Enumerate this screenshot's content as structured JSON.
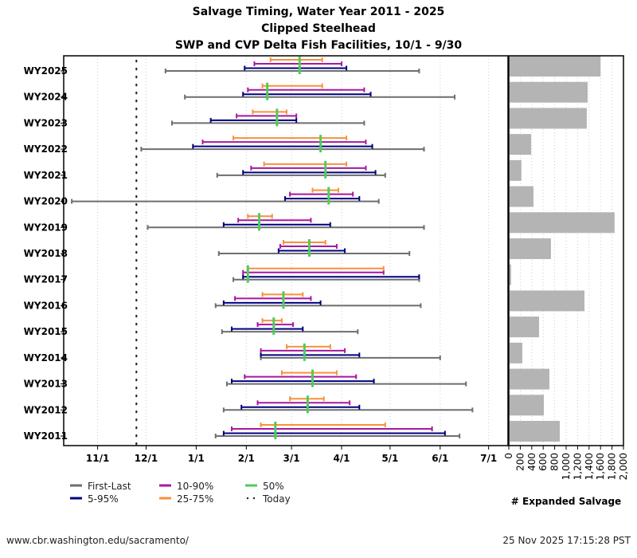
{
  "chart_data": {
    "type": "range-bar",
    "title": [
      "Salvage Timing, Water Year 2011 - 2025",
      "Clipped Steelhead",
      "SWP and CVP Delta Fish Facilities, 10/1 - 9/30"
    ],
    "xaxis": {
      "ticks": [
        "11/1",
        "12/1",
        "1/1",
        "2/1",
        "3/1",
        "4/1",
        "5/1",
        "6/1",
        "7/1"
      ],
      "range": [
        "10/11",
        "7/13"
      ],
      "grid": true
    },
    "today": "11/25",
    "colors": {
      "first_last": "#6e6e6e",
      "p5_95": "#00007f",
      "p10_90": "#a8189e",
      "p25_75": "#f7923a",
      "median": "#4fcc5a",
      "bar": "#b4b4b4"
    },
    "legend": [
      {
        "key": "first_last",
        "label": "First-Last"
      },
      {
        "key": "p5_95",
        "label": "5-95%"
      },
      {
        "key": "p10_90",
        "label": "10-90%"
      },
      {
        "key": "p25_75",
        "label": "25-75%"
      },
      {
        "key": "median",
        "label": "50%"
      },
      {
        "key": "today",
        "label": "Today"
      }
    ],
    "rows": [
      {
        "label": "WY2025",
        "first_last": [
          "12/13",
          "5/19"
        ],
        "p5_95": [
          "1/31",
          "4/4"
        ],
        "p10_90": [
          "2/6",
          "4/1"
        ],
        "p25_75": [
          "2/16",
          "3/20"
        ],
        "median": "3/6",
        "salvage": 1600
      },
      {
        "label": "WY2024",
        "first_last": [
          "12/25",
          "6/10"
        ],
        "p5_95": [
          "1/30",
          "4/19"
        ],
        "p10_90": [
          "2/2",
          "4/15"
        ],
        "p25_75": [
          "2/11",
          "3/20"
        ],
        "median": "2/14",
        "salvage": 1375
      },
      {
        "label": "WY2023",
        "first_last": [
          "12/17",
          "4/15"
        ],
        "p5_95": [
          "1/10",
          "3/4"
        ],
        "p10_90": [
          "1/26",
          "3/4"
        ],
        "p25_75": [
          "2/5",
          "2/26"
        ],
        "median": "2/20",
        "salvage": 1360
      },
      {
        "label": "WY2022",
        "first_last": [
          "11/28",
          "5/22"
        ],
        "p5_95": [
          "12/30",
          "4/20"
        ],
        "p10_90": [
          "1/5",
          "4/16"
        ],
        "p25_75": [
          "1/24",
          "4/4"
        ],
        "median": "3/19",
        "salvage": 390
      },
      {
        "label": "WY2021",
        "first_last": [
          "1/14",
          "4/28"
        ],
        "p5_95": [
          "1/30",
          "4/22"
        ],
        "p10_90": [
          "2/4",
          "4/16"
        ],
        "p25_75": [
          "2/12",
          "4/4"
        ],
        "median": "3/22",
        "salvage": 220
      },
      {
        "label": "WY2020",
        "first_last": [
          "10/16",
          "4/24"
        ],
        "p5_95": [
          "2/25",
          "4/12"
        ],
        "p10_90": [
          "2/28",
          "4/8"
        ],
        "p25_75": [
          "3/14",
          "3/30"
        ],
        "median": "3/24",
        "salvage": 430
      },
      {
        "label": "WY2019",
        "first_last": [
          "12/2",
          "5/22"
        ],
        "p5_95": [
          "1/18",
          "3/25"
        ],
        "p10_90": [
          "1/27",
          "3/13"
        ],
        "p25_75": [
          "2/2",
          "2/17"
        ],
        "median": "2/9",
        "salvage": 1845
      },
      {
        "label": "WY2018",
        "first_last": [
          "1/15",
          "5/13"
        ],
        "p5_95": [
          "2/21",
          "4/3"
        ],
        "p10_90": [
          "2/22",
          "3/29"
        ],
        "p25_75": [
          "2/24",
          "3/22"
        ],
        "median": "3/12",
        "salvage": 735
      },
      {
        "label": "WY2017",
        "first_last": [
          "1/24",
          "5/19"
        ],
        "p5_95": [
          "1/30",
          "5/19"
        ],
        "p10_90": [
          "1/30",
          "4/27"
        ],
        "p25_75": [
          "2/2",
          "4/27"
        ],
        "median": "2/2",
        "salvage": 40
      },
      {
        "label": "WY2016",
        "first_last": [
          "1/13",
          "5/20"
        ],
        "p5_95": [
          "1/18",
          "3/19"
        ],
        "p10_90": [
          "1/25",
          "3/13"
        ],
        "p25_75": [
          "2/11",
          "3/8"
        ],
        "median": "2/24",
        "salvage": 1320
      },
      {
        "label": "WY2015",
        "first_last": [
          "1/17",
          "4/11"
        ],
        "p5_95": [
          "1/23",
          "3/8"
        ],
        "p10_90": [
          "2/8",
          "3/2"
        ],
        "p25_75": [
          "2/11",
          "2/23"
        ],
        "median": "2/18",
        "salvage": 528
      },
      {
        "label": "WY2014",
        "first_last": [
          "2/10",
          "6/1"
        ],
        "p5_95": [
          "2/10",
          "4/12"
        ],
        "p10_90": [
          "2/10",
          "4/3"
        ],
        "p25_75": [
          "2/26",
          "3/25"
        ],
        "median": "3/9",
        "salvage": 236
      },
      {
        "label": "WY2013",
        "first_last": [
          "1/20",
          "6/17"
        ],
        "p5_95": [
          "1/23",
          "4/21"
        ],
        "p10_90": [
          "1/31",
          "4/10"
        ],
        "p25_75": [
          "2/23",
          "3/29"
        ],
        "median": "3/14",
        "salvage": 708
      },
      {
        "label": "WY2012",
        "first_last": [
          "1/18",
          "6/21"
        ],
        "p5_95": [
          "1/29",
          "4/12"
        ],
        "p10_90": [
          "2/8",
          "4/6"
        ],
        "p25_75": [
          "2/28",
          "3/21"
        ],
        "median": "3/11",
        "salvage": 611
      },
      {
        "label": "WY2011",
        "first_last": [
          "1/13",
          "6/13"
        ],
        "p5_95": [
          "1/18",
          "6/4"
        ],
        "p10_90": [
          "1/23",
          "5/27"
        ],
        "p25_75": [
          "2/10",
          "4/28"
        ],
        "median": "2/19",
        "salvage": 889
      }
    ],
    "salvage_axis": {
      "label": "# Expanded Salvage",
      "range": [
        0,
        2000
      ],
      "ticks": [
        "0",
        "200",
        "400",
        "600",
        "800",
        "1,000",
        "1,200",
        "1,400",
        "1,600",
        "1,800",
        "2,000"
      ],
      "grid": true
    }
  },
  "footer": {
    "url": "www.cbr.washington.edu/sacramento/",
    "timestamp": "25 Nov 2025 17:15:28 PST"
  }
}
